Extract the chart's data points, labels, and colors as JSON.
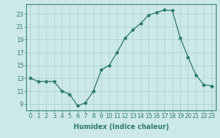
{
  "x": [
    0,
    1,
    2,
    3,
    4,
    5,
    6,
    7,
    8,
    9,
    10,
    11,
    12,
    13,
    14,
    15,
    16,
    17,
    18,
    19,
    20,
    21,
    22,
    23
  ],
  "y": [
    13,
    12.5,
    12.5,
    12.5,
    11,
    10.5,
    8.7,
    9.2,
    11,
    14.3,
    15,
    17,
    19.2,
    20.5,
    21.5,
    22.8,
    23.2,
    23.6,
    23.5,
    19.3,
    16.3,
    13.5,
    12,
    11.8
  ],
  "line_color": "#2e7d6e",
  "marker": "D",
  "marker_size": 2.2,
  "bg_color": "#cce8e8",
  "grid_color": "#aacccc",
  "xlabel": "Humidex (Indice chaleur)",
  "xlabel_fontsize": 7,
  "tick_fontsize": 6,
  "xlim": [
    -0.5,
    23.5
  ],
  "ylim": [
    8.0,
    24.5
  ],
  "yticks": [
    9,
    11,
    13,
    15,
    17,
    19,
    21,
    23
  ],
  "xticks": [
    0,
    1,
    2,
    3,
    4,
    5,
    6,
    7,
    8,
    9,
    10,
    11,
    12,
    13,
    14,
    15,
    16,
    17,
    18,
    19,
    20,
    21,
    22,
    23
  ],
  "tick_color": "#2e7d6e",
  "label_color": "#2e7d6e"
}
